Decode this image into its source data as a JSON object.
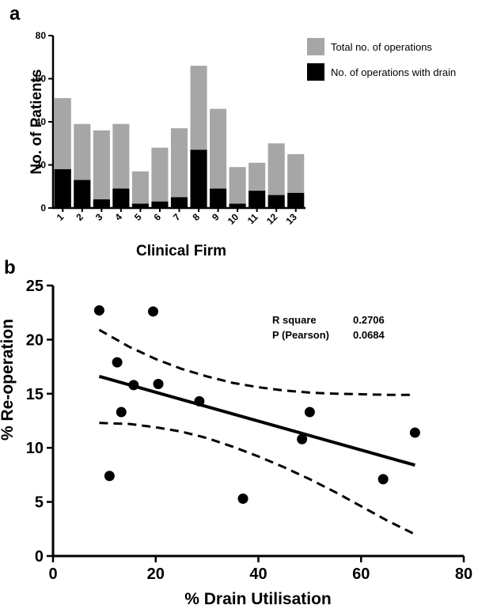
{
  "chart_data": [
    {
      "panel_label": "a",
      "type": "bar",
      "categories": [
        "1",
        "2",
        "3",
        "4",
        "5",
        "6",
        "7",
        "8",
        "9",
        "10",
        "11",
        "12",
        "13"
      ],
      "series": [
        {
          "name": "Total no. of operations",
          "color": "#a6a6a6",
          "values": [
            51,
            39,
            36,
            39,
            17,
            28,
            37,
            66,
            46,
            19,
            21,
            30,
            25
          ]
        },
        {
          "name": "No. of operations with drain",
          "color": "#000000",
          "values": [
            18,
            13,
            4,
            9,
            2,
            3,
            5,
            27,
            9,
            2,
            8,
            6,
            7
          ]
        }
      ],
      "xlabel": "Clinical Firm",
      "ylabel": "No. of Patients",
      "ylim": [
        0,
        80
      ],
      "yticks": [
        "0",
        "20",
        "40",
        "60",
        "80"
      ],
      "legend": "top-right",
      "grid": false
    },
    {
      "panel_label": "b",
      "type": "scatter",
      "points": [
        {
          "x": 9,
          "y": 22.7
        },
        {
          "x": 19.5,
          "y": 22.6
        },
        {
          "x": 12.5,
          "y": 17.9
        },
        {
          "x": 15.7,
          "y": 15.8
        },
        {
          "x": 20.5,
          "y": 15.9
        },
        {
          "x": 13.3,
          "y": 13.3
        },
        {
          "x": 28.5,
          "y": 14.3
        },
        {
          "x": 50,
          "y": 13.3
        },
        {
          "x": 48.5,
          "y": 10.8
        },
        {
          "x": 70.5,
          "y": 11.4
        },
        {
          "x": 11,
          "y": 7.4
        },
        {
          "x": 64.3,
          "y": 7.1
        },
        {
          "x": 37,
          "y": 5.3
        }
      ],
      "regression_line": {
        "x": [
          9,
          70.5
        ],
        "y": [
          16.6,
          8.4
        ]
      },
      "ci_upper": {
        "x": [
          9,
          15,
          20,
          25,
          30,
          35,
          40,
          45,
          50,
          55,
          60,
          65,
          70.5
        ],
        "y": [
          20.9,
          19.3,
          18.2,
          17.3,
          16.6,
          16.0,
          15.6,
          15.3,
          15.1,
          15.0,
          14.95,
          14.9,
          14.9
        ]
      },
      "ci_lower": {
        "x": [
          9,
          15,
          20,
          25,
          30,
          35,
          40,
          45,
          50,
          55,
          60,
          65,
          70.5
        ],
        "y": [
          12.3,
          12.2,
          11.9,
          11.5,
          10.9,
          10.1,
          9.2,
          8.2,
          7.1,
          5.9,
          4.6,
          3.3,
          2.0
        ]
      },
      "annotations": [
        {
          "label": "R square",
          "value": "0.2706"
        },
        {
          "label": "P (Pearson)",
          "value": "0.0684"
        }
      ],
      "xlabel": "% Drain Utilisation",
      "ylabel": "% Re-operation",
      "xlim": [
        0,
        80
      ],
      "ylim": [
        0,
        25
      ],
      "xticks": [
        "0",
        "20",
        "40",
        "60",
        "80"
      ],
      "yticks": [
        "0",
        "5",
        "10",
        "15",
        "20",
        "25"
      ],
      "grid": false
    }
  ]
}
